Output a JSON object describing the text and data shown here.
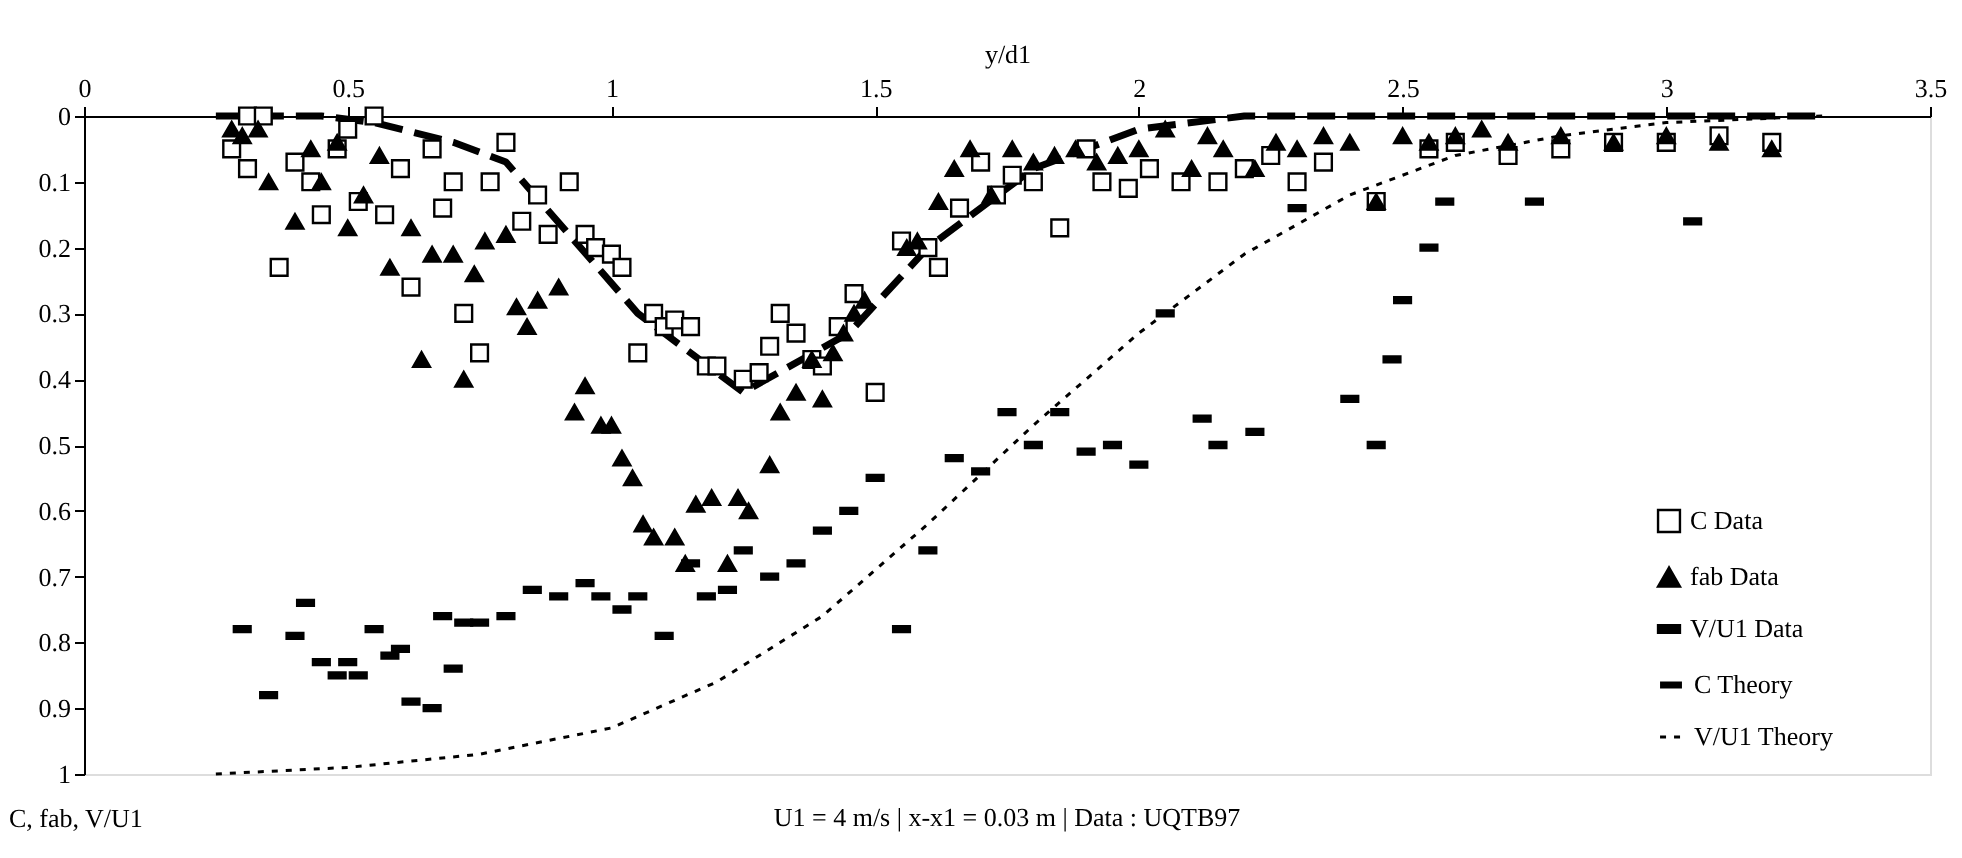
{
  "chart_data": {
    "type": "scatter",
    "xlabel": "y/d1",
    "ylabel": "C, fab, V/U1",
    "annotations": [
      "U1 = 4 m/s | x-x1 = 0.03 m | Data : UQTB97"
    ],
    "xlim": [
      0,
      3.5
    ],
    "xticks": [
      0,
      0.5,
      1,
      1.5,
      2,
      2.5,
      3,
      3.5
    ],
    "ylim": [
      1,
      0
    ],
    "yticks": [
      0,
      0.1,
      0.2,
      0.3,
      0.4,
      0.5,
      0.6,
      0.7,
      0.8,
      0.9,
      1
    ],
    "legend": "right",
    "grid": false,
    "series": [
      {
        "name": "C Data",
        "marker": "square",
        "color": "#000000",
        "x": [
          0.28,
          0.31,
          0.34,
          0.31,
          0.37,
          0.4,
          0.43,
          0.45,
          0.48,
          0.5,
          0.52,
          0.55,
          0.57,
          0.6,
          0.62,
          0.66,
          0.68,
          0.7,
          0.72,
          0.75,
          0.77,
          0.8,
          0.83,
          0.86,
          0.88,
          0.92,
          0.95,
          0.97,
          1.0,
          1.02,
          1.05,
          1.08,
          1.1,
          1.12,
          1.15,
          1.18,
          1.2,
          1.25,
          1.28,
          1.3,
          1.32,
          1.35,
          1.38,
          1.4,
          1.43,
          1.46,
          1.5,
          1.55,
          1.6,
          1.62,
          1.66,
          1.7,
          1.73,
          1.76,
          1.8,
          1.85,
          1.9,
          1.93,
          1.98,
          2.02,
          2.08,
          2.15,
          2.2,
          2.25,
          2.3,
          2.35,
          2.45,
          2.55,
          2.6,
          2.7,
          2.8,
          2.9,
          3.0,
          3.1,
          3.2
        ],
        "values": [
          0.05,
          0.0,
          0.0,
          0.08,
          0.23,
          0.07,
          0.1,
          0.15,
          0.05,
          0.02,
          0.13,
          0.0,
          0.15,
          0.08,
          0.26,
          0.05,
          0.14,
          0.1,
          0.3,
          0.36,
          0.1,
          0.04,
          0.16,
          0.12,
          0.18,
          0.1,
          0.18,
          0.2,
          0.21,
          0.23,
          0.36,
          0.3,
          0.32,
          0.31,
          0.32,
          0.38,
          0.38,
          0.4,
          0.39,
          0.35,
          0.3,
          0.33,
          0.37,
          0.38,
          0.32,
          0.27,
          0.42,
          0.19,
          0.2,
          0.23,
          0.14,
          0.07,
          0.12,
          0.09,
          0.1,
          0.17,
          0.05,
          0.1,
          0.11,
          0.08,
          0.1,
          0.1,
          0.08,
          0.06,
          0.1,
          0.07,
          0.13,
          0.05,
          0.04,
          0.06,
          0.05,
          0.04,
          0.04,
          0.03,
          0.04
        ]
      },
      {
        "name": "fab Data",
        "marker": "triangle",
        "color": "#000000",
        "x": [
          0.28,
          0.3,
          0.33,
          0.35,
          0.4,
          0.43,
          0.45,
          0.48,
          0.5,
          0.53,
          0.56,
          0.58,
          0.62,
          0.64,
          0.66,
          0.7,
          0.72,
          0.74,
          0.76,
          0.8,
          0.82,
          0.84,
          0.86,
          0.9,
          0.93,
          0.95,
          0.98,
          1.0,
          1.02,
          1.04,
          1.06,
          1.08,
          1.12,
          1.14,
          1.16,
          1.19,
          1.22,
          1.24,
          1.26,
          1.3,
          1.32,
          1.35,
          1.38,
          1.4,
          1.42,
          1.44,
          1.46,
          1.48,
          1.56,
          1.58,
          1.62,
          1.65,
          1.68,
          1.72,
          1.76,
          1.8,
          1.84,
          1.88,
          1.92,
          1.96,
          2.0,
          2.05,
          2.1,
          2.13,
          2.16,
          2.22,
          2.26,
          2.3,
          2.35,
          2.4,
          2.45,
          2.5,
          2.55,
          2.6,
          2.65,
          2.7,
          2.8,
          2.9,
          3.0,
          3.1,
          3.2
        ],
        "values": [
          0.02,
          0.03,
          0.02,
          0.1,
          0.16,
          0.05,
          0.1,
          0.04,
          0.17,
          0.12,
          0.06,
          0.23,
          0.17,
          0.37,
          0.21,
          0.21,
          0.4,
          0.24,
          0.19,
          0.18,
          0.29,
          0.32,
          0.28,
          0.26,
          0.45,
          0.41,
          0.47,
          0.47,
          0.52,
          0.55,
          0.62,
          0.64,
          0.64,
          0.68,
          0.59,
          0.58,
          0.68,
          0.58,
          0.6,
          0.53,
          0.45,
          0.42,
          0.37,
          0.43,
          0.36,
          0.33,
          0.3,
          0.28,
          0.2,
          0.19,
          0.13,
          0.08,
          0.05,
          0.12,
          0.05,
          0.07,
          0.06,
          0.05,
          0.07,
          0.06,
          0.05,
          0.02,
          0.08,
          0.03,
          0.05,
          0.08,
          0.04,
          0.05,
          0.03,
          0.04,
          0.13,
          0.03,
          0.04,
          0.03,
          0.02,
          0.04,
          0.03,
          0.04,
          0.03,
          0.04,
          0.05
        ]
      },
      {
        "name": "V/U1 Data",
        "marker": "square",
        "color": "#000000",
        "x": [
          0.3,
          0.35,
          0.4,
          0.42,
          0.45,
          0.48,
          0.5,
          0.52,
          0.55,
          0.58,
          0.6,
          0.62,
          0.66,
          0.68,
          0.7,
          0.72,
          0.75,
          0.8,
          0.85,
          0.9,
          0.95,
          0.98,
          1.02,
          1.05,
          1.1,
          1.15,
          1.18,
          1.22,
          1.25,
          1.3,
          1.35,
          1.4,
          1.45,
          1.5,
          1.55,
          1.6,
          1.65,
          1.7,
          1.75,
          1.8,
          1.85,
          1.9,
          1.95,
          2.0,
          2.05,
          2.12,
          2.15,
          2.22,
          2.3,
          2.4,
          2.45,
          2.48,
          2.5,
          2.55,
          2.58,
          2.75,
          3.05
        ],
        "values": [
          0.78,
          0.88,
          0.79,
          0.74,
          0.83,
          0.85,
          0.83,
          0.85,
          0.78,
          0.82,
          0.81,
          0.89,
          0.9,
          0.76,
          0.84,
          0.77,
          0.77,
          0.76,
          0.72,
          0.73,
          0.71,
          0.73,
          0.75,
          0.73,
          0.79,
          0.68,
          0.73,
          0.72,
          0.66,
          0.7,
          0.68,
          0.63,
          0.6,
          0.55,
          0.78,
          0.66,
          0.52,
          0.54,
          0.45,
          0.5,
          0.45,
          0.51,
          0.5,
          0.53,
          0.3,
          0.46,
          0.5,
          0.48,
          0.14,
          0.43,
          0.5,
          0.37,
          0.28,
          0.2,
          0.13,
          0.13,
          0.16
        ]
      },
      {
        "name": "C Theory",
        "type": "line",
        "line_style": "dashed",
        "color": "#000000",
        "x": [
          0.25,
          0.45,
          0.55,
          0.7,
          0.8,
          1.05,
          1.25,
          1.45,
          1.6,
          1.8,
          2.0,
          2.2,
          3.3
        ],
        "values": [
          0.0,
          0.0,
          0.01,
          0.04,
          0.07,
          0.3,
          0.42,
          0.33,
          0.2,
          0.08,
          0.02,
          0.0,
          0.0
        ]
      },
      {
        "name": "V/U1 Theory",
        "type": "line",
        "line_style": "dotted",
        "color": "#000000",
        "x": [
          0.25,
          0.5,
          0.75,
          1.0,
          1.2,
          1.4,
          1.6,
          1.8,
          2.0,
          2.2,
          2.4,
          2.6,
          2.8,
          3.0,
          3.3
        ],
        "values": [
          1.0,
          0.99,
          0.97,
          0.93,
          0.86,
          0.76,
          0.62,
          0.47,
          0.33,
          0.21,
          0.12,
          0.06,
          0.03,
          0.01,
          0.0
        ]
      }
    ]
  }
}
